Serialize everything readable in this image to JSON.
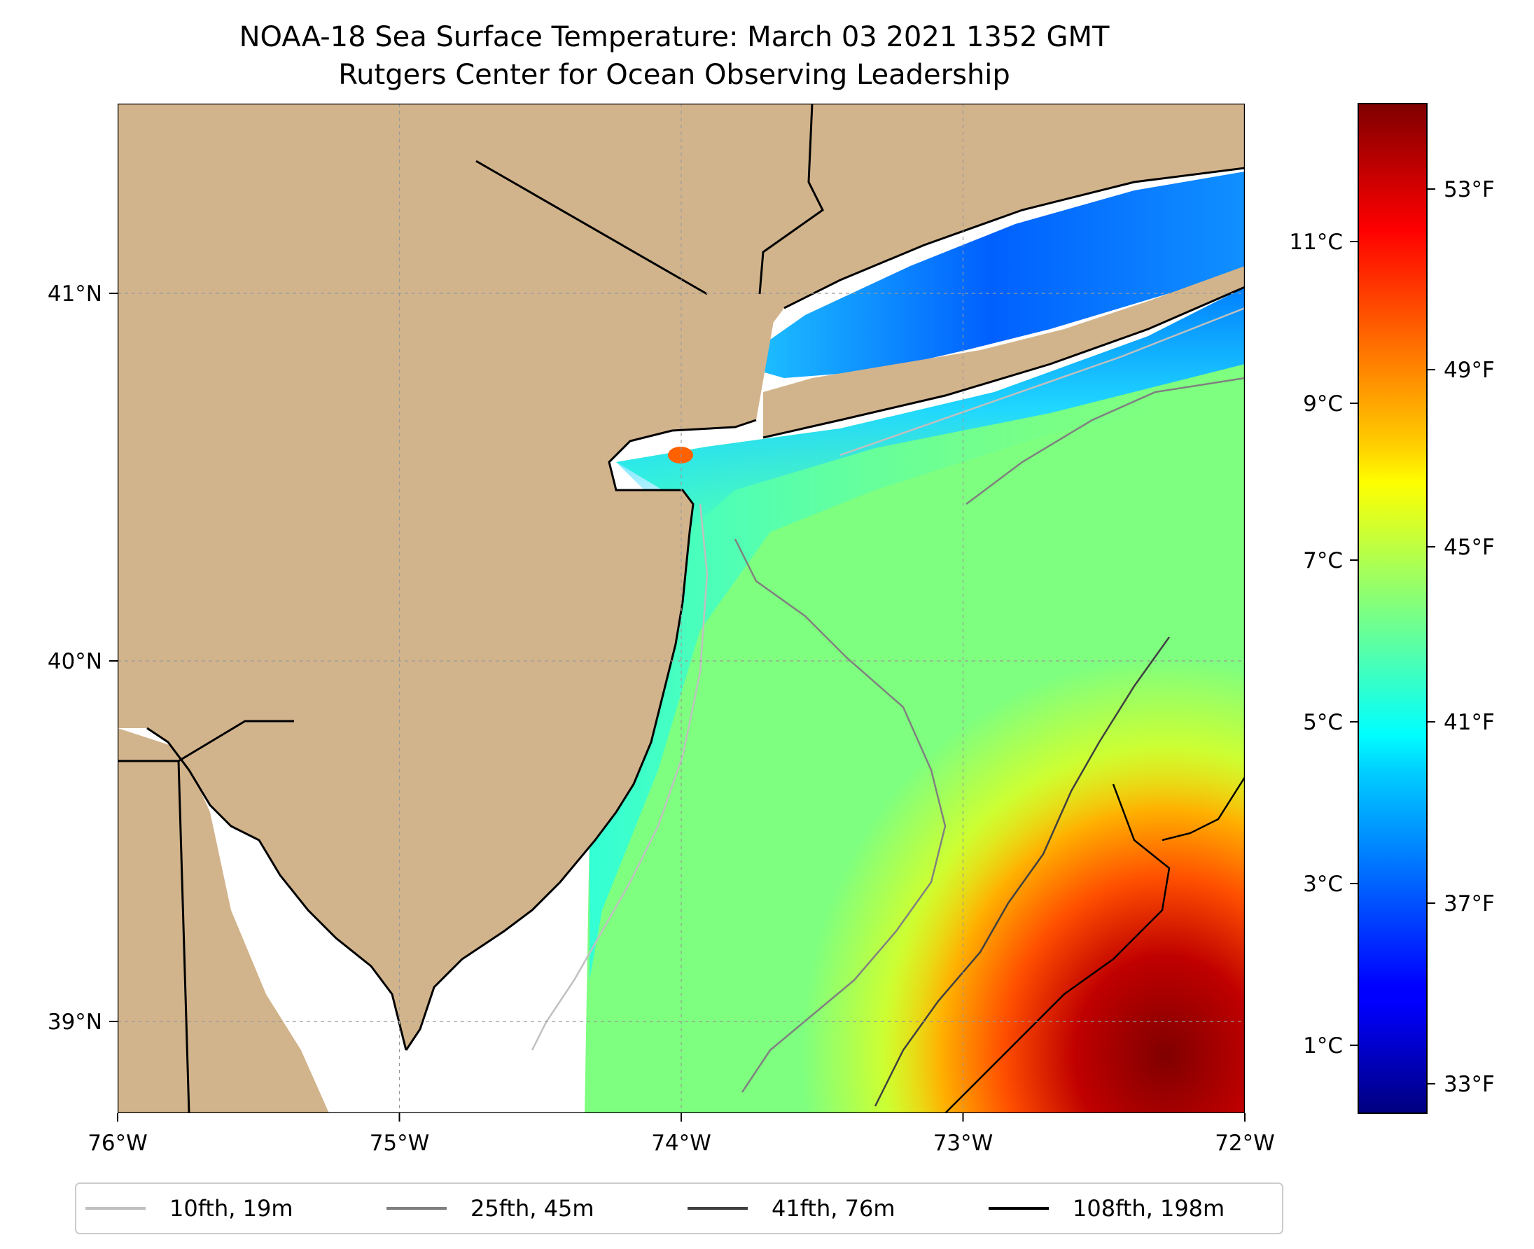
{
  "title": {
    "line1": "NOAA-18 Sea Surface Temperature: March 03 2021 1352 GMT",
    "line2": "Rutgers Center for Ocean Observing Leadership"
  },
  "map": {
    "lon_range": [
      -76,
      -72
    ],
    "lat_range": [
      38.75,
      41.5
    ],
    "land_color": "#d2b48c",
    "lon_ticks": [
      {
        "value": -76,
        "label": "76°W"
      },
      {
        "value": -75,
        "label": "75°W"
      },
      {
        "value": -74,
        "label": "74°W"
      },
      {
        "value": -73,
        "label": "73°W"
      },
      {
        "value": -72,
        "label": "72°W"
      }
    ],
    "lat_ticks": [
      {
        "value": 41,
        "label": "41°N"
      },
      {
        "value": 40,
        "label": "40°N"
      },
      {
        "value": 39,
        "label": "39°N"
      }
    ],
    "grid": true
  },
  "colorbar": {
    "colormap": "jet",
    "range_c": [
      0.3,
      12.8
    ],
    "celsius_ticks": [
      {
        "value": 1,
        "label": "1°C"
      },
      {
        "value": 3,
        "label": "3°C"
      },
      {
        "value": 5,
        "label": "5°C"
      },
      {
        "value": 7,
        "label": "7°C"
      },
      {
        "value": 9,
        "label": "9°C"
      },
      {
        "value": 11,
        "label": "11°C"
      }
    ],
    "fahrenheit_ticks": [
      {
        "value": 33,
        "label": "33°F"
      },
      {
        "value": 37,
        "label": "37°F"
      },
      {
        "value": 41,
        "label": "41°F"
      },
      {
        "value": 45,
        "label": "45°F"
      },
      {
        "value": 49,
        "label": "49°F"
      },
      {
        "value": 53,
        "label": "53°F"
      }
    ]
  },
  "legend": {
    "placement": "bottom",
    "items": [
      {
        "label": "10fth, 19m",
        "color": "#c0c0c0"
      },
      {
        "label": "25fth, 45m",
        "color": "#808080"
      },
      {
        "label": "41fth, 76m",
        "color": "#404040"
      },
      {
        "label": "108fth, 198m",
        "color": "#000000"
      }
    ]
  }
}
